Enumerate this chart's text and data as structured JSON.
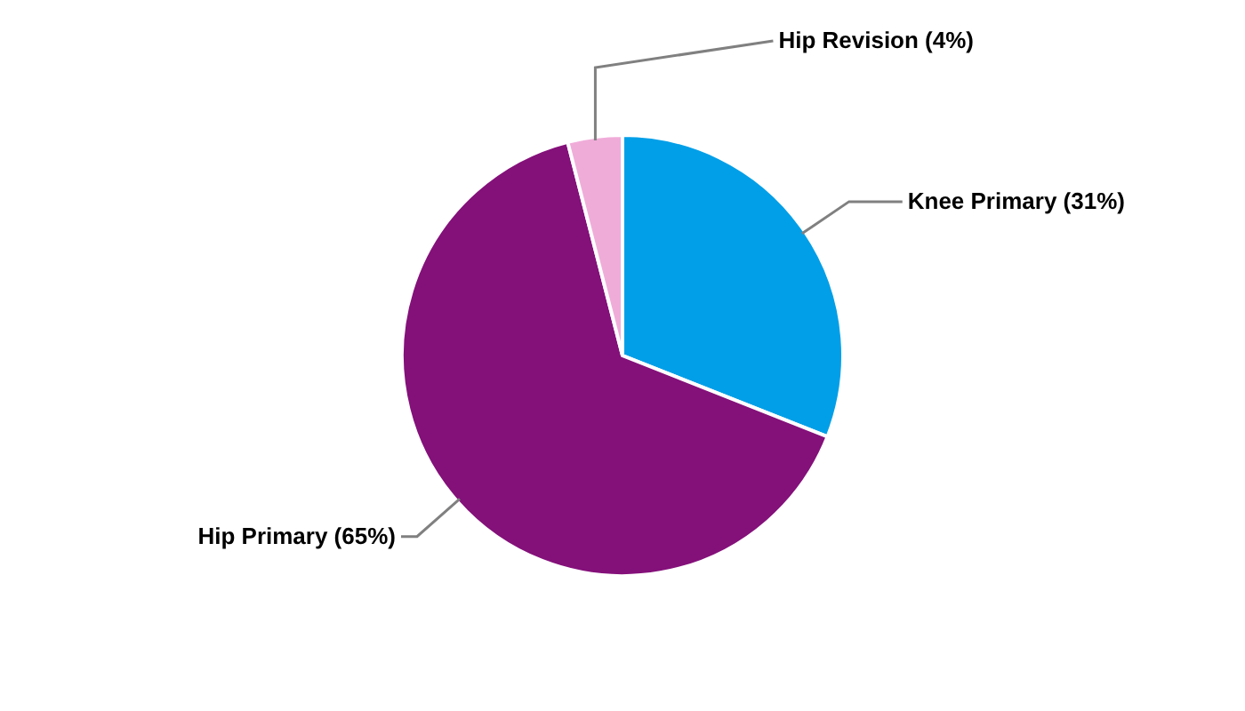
{
  "chart_data": {
    "type": "pie",
    "categories": [
      "Knee Primary (31%)",
      "Hip Primary (65%)",
      "Hip Revision (4%)"
    ],
    "values": [
      31,
      65,
      4
    ],
    "colors": [
      "#009fe8",
      "#84107a",
      "#f0acd9"
    ]
  }
}
